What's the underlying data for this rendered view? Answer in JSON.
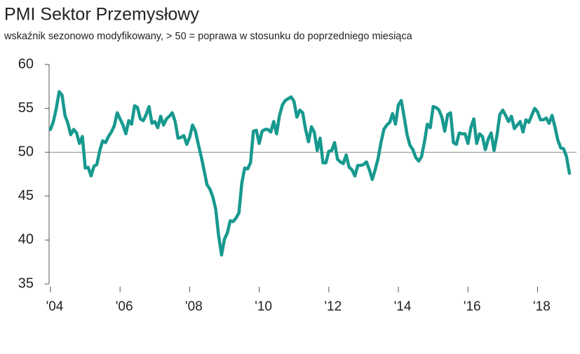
{
  "chart_data": {
    "type": "line",
    "title": "PMI Sektor Przemysłowy",
    "subtitle": "wskaźnik sezonowo modyfikowany, > 50 = poprawa w stosunku do poprzedniego miesiąca",
    "x": [
      2004,
      2004.083,
      2004.167,
      2004.25,
      2004.333,
      2004.417,
      2004.5,
      2004.583,
      2004.667,
      2004.75,
      2004.833,
      2004.917,
      2005,
      2005.083,
      2005.167,
      2005.25,
      2005.333,
      2005.417,
      2005.5,
      2005.583,
      2005.667,
      2005.75,
      2005.833,
      2005.917,
      2006,
      2006.083,
      2006.167,
      2006.25,
      2006.333,
      2006.417,
      2006.5,
      2006.583,
      2006.667,
      2006.75,
      2006.833,
      2006.917,
      2007,
      2007.083,
      2007.167,
      2007.25,
      2007.333,
      2007.417,
      2007.5,
      2007.583,
      2007.667,
      2007.75,
      2007.833,
      2007.917,
      2008,
      2008.083,
      2008.167,
      2008.25,
      2008.333,
      2008.417,
      2008.5,
      2008.583,
      2008.667,
      2008.75,
      2008.833,
      2008.917,
      2009,
      2009.083,
      2009.167,
      2009.25,
      2009.333,
      2009.417,
      2009.5,
      2009.583,
      2009.667,
      2009.75,
      2009.833,
      2009.917,
      2010,
      2010.083,
      2010.167,
      2010.25,
      2010.333,
      2010.417,
      2010.5,
      2010.583,
      2010.667,
      2010.75,
      2010.833,
      2010.917,
      2011,
      2011.083,
      2011.167,
      2011.25,
      2011.333,
      2011.417,
      2011.5,
      2011.583,
      2011.667,
      2011.75,
      2011.833,
      2011.917,
      2012,
      2012.083,
      2012.167,
      2012.25,
      2012.333,
      2012.417,
      2012.5,
      2012.583,
      2012.667,
      2012.75,
      2012.833,
      2012.917,
      2013,
      2013.083,
      2013.167,
      2013.25,
      2013.333,
      2013.417,
      2013.5,
      2013.583,
      2013.667,
      2013.75,
      2013.833,
      2013.917,
      2014,
      2014.083,
      2014.167,
      2014.25,
      2014.333,
      2014.417,
      2014.5,
      2014.583,
      2014.667,
      2014.75,
      2014.833,
      2014.917,
      2015,
      2015.083,
      2015.167,
      2015.25,
      2015.333,
      2015.417,
      2015.5,
      2015.583,
      2015.667,
      2015.75,
      2015.833,
      2015.917,
      2016,
      2016.083,
      2016.167,
      2016.25,
      2016.333,
      2016.417,
      2016.5,
      2016.583,
      2016.667,
      2016.75,
      2016.833,
      2016.917,
      2017,
      2017.083,
      2017.167,
      2017.25,
      2017.333,
      2017.417,
      2017.5,
      2017.583,
      2017.667,
      2017.75,
      2017.833,
      2017.917,
      2018,
      2018.083,
      2018.167,
      2018.25,
      2018.333,
      2018.417,
      2018.5,
      2018.583,
      2018.667,
      2018.75,
      2018.833,
      2018.917
    ],
    "series": [
      {
        "color": "#17998f",
        "values": [
          52.6,
          53.5,
          55,
          56.9,
          56.5,
          54.2,
          53.3,
          52,
          52.6,
          52.2,
          51,
          51.8,
          48.2,
          48.3,
          47.3,
          48.4,
          48.6,
          50.2,
          51.3,
          51.1,
          51.8,
          52.3,
          53,
          54.5,
          53.8,
          53.1,
          52.1,
          53.6,
          53.2,
          55.3,
          55.1,
          53.8,
          53.6,
          54.3,
          55.2,
          53.3,
          53.5,
          52.8,
          54.1,
          53.1,
          53.8,
          54.1,
          54.5,
          53.5,
          51.6,
          51.7,
          51.9,
          50.9,
          51.7,
          53.1,
          52.4,
          50.9,
          49.5,
          47.9,
          46.3,
          45.8,
          44.9,
          43.5,
          40.5,
          38.3,
          40.1,
          40.8,
          42.2,
          42.1,
          42.5,
          43.1,
          46.5,
          48.2,
          48.1,
          48.8,
          52.4,
          52.5,
          51,
          52.4,
          52.6,
          52.6,
          52.3,
          53.5,
          52.1,
          54.2,
          55.4,
          55.9,
          56.1,
          56.3,
          55.8,
          54,
          54.8,
          54.5,
          52.6,
          51.2,
          52.9,
          52.3,
          50.2,
          51.6,
          48.8,
          48.8,
          50.1,
          50.2,
          51.1,
          49.2,
          48.9,
          48.7,
          49.7,
          48.3,
          48,
          47.3,
          48.5,
          48.5,
          48.6,
          48.9,
          48,
          46.9,
          48,
          49.3,
          51.1,
          52.6,
          53.1,
          53.4,
          54.4,
          53.2,
          55.4,
          55.9,
          54,
          52,
          50.8,
          50.3,
          49.4,
          49,
          49.5,
          51.2,
          53.2,
          52.8,
          55.2,
          55.1,
          54.8,
          54,
          52.4,
          54.3,
          54.5,
          51.1,
          50.9,
          52.2,
          52.1,
          52.1,
          51,
          52.8,
          53.8,
          51,
          52.1,
          51.8,
          50.3,
          51.5,
          52.2,
          50.2,
          51.9,
          54.3,
          54.8,
          54.2,
          53.5,
          54.1,
          52.7,
          53.1,
          53.5,
          52.3,
          53.7,
          53.4,
          54.2,
          55,
          54.6,
          53.7,
          53.7,
          53.9,
          53.3,
          54.2,
          52.9,
          51.4,
          50.5,
          50.4,
          49.5,
          47.6
        ]
      }
    ],
    "xlim": [
      2003.96,
      2019.12
    ],
    "xticks": [
      {
        "value": 2004,
        "label": "'04"
      },
      {
        "value": 2006,
        "label": "'06"
      },
      {
        "value": 2008,
        "label": "'08"
      },
      {
        "value": 2010,
        "label": "'10"
      },
      {
        "value": 2012,
        "label": "'12"
      },
      {
        "value": 2014,
        "label": "'14"
      },
      {
        "value": 2016,
        "label": "'16"
      },
      {
        "value": 2018,
        "label": "'18"
      }
    ],
    "ylim": [
      35,
      60
    ],
    "yticks": [
      35,
      40,
      45,
      50,
      55,
      60
    ],
    "hline": 50,
    "grid": false
  }
}
